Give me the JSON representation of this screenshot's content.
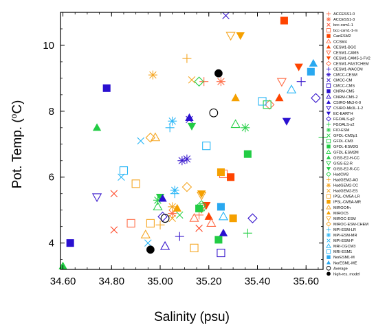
{
  "chart_data": {
    "type": "scatter",
    "title": "",
    "xlabel": "Salinity (psu)",
    "ylabel": "Pot. Temp. (",
    "ylabel_super": "o",
    "ylabel_tail": "C)",
    "xlim": [
      34.59,
      35.67
    ],
    "ylim": [
      3.2,
      11.0
    ],
    "x_ticks": [
      "34.60",
      "34.80",
      "35.00",
      "35.20",
      "35.40",
      "35.60"
    ],
    "x_tick_values": [
      34.6,
      34.8,
      35.0,
      35.2,
      35.4,
      35.6
    ],
    "y_ticks": [
      "4",
      "6",
      "8",
      "10"
    ],
    "y_tick_values": [
      4,
      6,
      8,
      10
    ],
    "grid": false,
    "legend_placement": "right, outside plot",
    "series": [
      {
        "name": "ACCESS1-0",
        "marker": "plus",
        "color": "#ff6f4a",
        "points": [
          [
            35.18,
            8.9
          ]
        ]
      },
      {
        "name": "ACCESS1-3",
        "marker": "star",
        "color": "#ff6f4a",
        "points": [
          [
            35.25,
            8.9
          ]
        ]
      },
      {
        "name": "bcc-csm1-1",
        "marker": "cross",
        "color": "#ff4a2a",
        "points": [
          [
            34.81,
            5.5
          ]
        ]
      },
      {
        "name": "bcc-csm1-1-m",
        "marker": "square-open",
        "color": "#ff6f4a",
        "points": [
          [
            34.88,
            4.6
          ]
        ]
      },
      {
        "name": "CanESM2",
        "marker": "square",
        "color": "#ff4400",
        "points": [
          [
            35.51,
            10.75
          ]
        ]
      },
      {
        "name": "CCSM4",
        "marker": "triangle-open",
        "color": "#ff6f4a",
        "points": [
          [
            35.14,
            4.75
          ]
        ]
      },
      {
        "name": "CESM1-BGC",
        "marker": "triangle",
        "color": "#ff4400",
        "points": [
          [
            35.2,
            4.8
          ]
        ]
      },
      {
        "name": "CESM1-CAM5",
        "marker": "triangle-down-open",
        "color": "#ff6f4a",
        "points": [
          [
            35.5,
            8.9
          ]
        ]
      },
      {
        "name": "CESM1-CAM5-1-FV2",
        "marker": "triangle-down",
        "color": "#ff4400",
        "points": [
          [
            35.57,
            9.35
          ]
        ]
      },
      {
        "name": "CESM1-FASTCHEM",
        "marker": "diamond-open",
        "color": "#ff6f4a",
        "points": [
          [
            35.45,
            8.2
          ]
        ]
      },
      {
        "name": "CESM1-WACCM",
        "marker": "plus",
        "color": "#3a1acd",
        "points": [
          [
            35.58,
            8.9
          ]
        ]
      },
      {
        "name": "CMCC-CESM",
        "marker": "star",
        "color": "#3a1acd",
        "points": [
          [
            35.09,
            6.5
          ]
        ]
      },
      {
        "name": "CMCC-CM",
        "marker": "cross",
        "color": "#3a1acd",
        "points": [
          [
            35.27,
            10.9
          ]
        ]
      },
      {
        "name": "CMCC-CMS",
        "marker": "square-open",
        "color": "#3a1acd",
        "points": [
          [
            35.25,
            3.7
          ]
        ]
      },
      {
        "name": "CNRM-CM5",
        "marker": "square",
        "color": "#2a10d0",
        "points": [
          [
            34.63,
            4.0
          ]
        ]
      },
      {
        "name": "CNRM-CM5-2",
        "marker": "triangle-open",
        "color": "#3a1acd",
        "points": [
          [
            35.02,
            3.9
          ]
        ]
      },
      {
        "name": "CSIRO-Mk3-6-0",
        "marker": "triangle",
        "color": "#2a10d0",
        "points": [
          [
            35.26,
            4.3
          ]
        ]
      },
      {
        "name": "CSIRO-Mk3L-1-2",
        "marker": "triangle-down-open",
        "color": "#3a1acd",
        "points": [
          [
            34.74,
            5.4
          ]
        ]
      },
      {
        "name": "EC-EARTH",
        "marker": "triangle-down",
        "color": "#2a10d0",
        "points": [
          [
            35.52,
            7.7
          ]
        ]
      },
      {
        "name": "FGOALS-g2",
        "marker": "diamond-open",
        "color": "#3a1acd",
        "points": [
          [
            35.38,
            4.75
          ]
        ]
      },
      {
        "name": "FGOALS-s2",
        "marker": "plus",
        "color": "#2ad04a",
        "points": [
          [
            35.67,
            7.2
          ]
        ]
      },
      {
        "name": "FIO-ESM",
        "marker": "star",
        "color": "#2ad04a",
        "points": [
          [
            35.35,
            7.5
          ]
        ]
      },
      {
        "name": "GFDL-CM2p1",
        "marker": "cross",
        "color": "#2ad04a",
        "points": [
          [
            35.08,
            4.85
          ]
        ]
      },
      {
        "name": "GFDL-CM3",
        "marker": "square-open",
        "color": "#2ad04a",
        "points": [
          [
            35.44,
            8.2
          ]
        ]
      },
      {
        "name": "GFDL-ESM2G",
        "marker": "square",
        "color": "#22cc44",
        "points": [
          [
            35.36,
            6.7
          ]
        ]
      },
      {
        "name": "GFDL-ESM2M",
        "marker": "triangle-open",
        "color": "#2ad04a",
        "points": [
          [
            35.31,
            7.6
          ]
        ]
      },
      {
        "name": "GISS-E2-H-CC",
        "marker": "triangle",
        "color": "#22cc44",
        "points": [
          [
            34.6,
            3.3
          ]
        ]
      },
      {
        "name": "GISS-E2-R",
        "marker": "triangle-down-open",
        "color": "#2ad04a",
        "points": [
          [
            35.18,
            5.1
          ]
        ]
      },
      {
        "name": "GISS-E2-R-CC",
        "marker": "triangle-down",
        "color": "#22cc44",
        "points": [
          [
            35.0,
            5.4
          ]
        ]
      },
      {
        "name": "HadCM3",
        "marker": "diamond-open",
        "color": "#2ad04a",
        "points": [
          [
            35.16,
            8.9
          ]
        ]
      },
      {
        "name": "HadGEM2-AO",
        "marker": "plus",
        "color": "#f5a623",
        "points": [
          [
            35.11,
            9.6
          ]
        ]
      },
      {
        "name": "HadGEM2-CC",
        "marker": "star",
        "color": "#f5a623",
        "points": [
          [
            34.97,
            9.1
          ]
        ]
      },
      {
        "name": "HadGEM2-ES",
        "marker": "cross",
        "color": "#f5a623",
        "points": [
          [
            35.13,
            8.95
          ]
        ]
      },
      {
        "name": "IPSL-CM5A-LR",
        "marker": "square-open",
        "color": "#f5a623",
        "points": [
          [
            34.9,
            5.8
          ]
        ]
      },
      {
        "name": "IPSL-CM5A-MR",
        "marker": "square",
        "color": "#f5a000",
        "points": [
          [
            35.3,
            4.75
          ]
        ]
      },
      {
        "name": "MIROC4h",
        "marker": "triangle-open",
        "color": "#f5a623",
        "points": [
          [
            34.98,
            7.2
          ]
        ]
      },
      {
        "name": "MIROC5",
        "marker": "triangle",
        "color": "#f5a000",
        "points": [
          [
            35.31,
            8.4
          ]
        ]
      },
      {
        "name": "MIROC-ESM",
        "marker": "triangle-down-open",
        "color": "#f5a623",
        "points": [
          [
            35.29,
            10.3
          ]
        ]
      },
      {
        "name": "MIROC-ESM-CHEM",
        "marker": "diamond-open",
        "color": "#f5a623",
        "points": [
          [
            34.96,
            7.2
          ]
        ]
      },
      {
        "name": "MPI-ESM-LR",
        "marker": "plus",
        "color": "#29b6f6",
        "points": [
          [
            35.04,
            7.5
          ]
        ]
      },
      {
        "name": "MPI-ESM-MR",
        "marker": "star",
        "color": "#29b6f6",
        "points": [
          [
            35.05,
            7.7
          ]
        ]
      },
      {
        "name": "MPI-ESM-P",
        "marker": "cross",
        "color": "#29b6f6",
        "points": [
          [
            34.92,
            7.1
          ]
        ]
      },
      {
        "name": "MRI-CGCM3",
        "marker": "triangle-open",
        "color": "#29b6f6",
        "points": [
          [
            35.54,
            8.65
          ]
        ]
      },
      {
        "name": "MRI-ESM1",
        "marker": "square-open",
        "color": "#29b6f6",
        "points": [
          [
            35.42,
            8.3
          ]
        ]
      },
      {
        "name": "NorESM1-M",
        "marker": "square",
        "color": "#29a8f0",
        "points": [
          [
            35.62,
            9.2
          ]
        ]
      },
      {
        "name": "NorESM1-ME",
        "marker": "triangle",
        "color": "#29a8f0",
        "points": [
          [
            35.63,
            9.45
          ]
        ]
      },
      {
        "name": "Average",
        "marker": "circle-open",
        "color": "#000000",
        "points": [
          [
            35.22,
            7.95
          ]
        ]
      },
      {
        "name": "high-res. model",
        "marker": "circle",
        "color": "#000000",
        "points": [
          [
            35.24,
            9.15
          ]
        ]
      }
    ],
    "extra_points": [
      {
        "series": "ACCESS1-0",
        "marker": "plus",
        "color": "#ff6f4a",
        "x": 35.16,
        "y": 4.85
      },
      {
        "series": "ACCESS1-3",
        "marker": "star",
        "color": "#ff6f4a",
        "x": 35.05,
        "y": 4.9
      },
      {
        "series": "bcc-csm1-1",
        "marker": "cross",
        "color": "#ff4a2a",
        "x": 34.81,
        "y": 4.4
      },
      {
        "series": "bcc-csm1-1",
        "marker": "cross",
        "color": "#ff4a2a",
        "x": 35.16,
        "y": 4.45
      },
      {
        "series": "bcc-csm1-1-m",
        "marker": "square-open",
        "color": "#ff6f4a",
        "x": 35.26,
        "y": 6.1
      },
      {
        "series": "CanESM2",
        "marker": "square",
        "color": "#ff4400",
        "x": 35.29,
        "y": 6.0
      },
      {
        "series": "CCSM4",
        "marker": "triangle-open",
        "color": "#ff6f4a",
        "x": 35.21,
        "y": 4.6
      },
      {
        "series": "CESM1-BGC",
        "marker": "triangle",
        "color": "#ff4400",
        "x": 35.49,
        "y": 8.4
      },
      {
        "series": "CESM1-CAM5",
        "marker": "triangle-down-open",
        "color": "#ff6f4a",
        "x": 35.17,
        "y": 5.05
      },
      {
        "series": "CESM1-CAM5-1-FV2",
        "marker": "triangle-down",
        "color": "#ff4400",
        "x": 35.19,
        "y": 5.15
      },
      {
        "series": "CESM1-WACCM",
        "marker": "plus",
        "color": "#3a1acd",
        "x": 35.08,
        "y": 4.2
      },
      {
        "series": "CMCC-CESM",
        "marker": "star",
        "color": "#3a1acd",
        "x": 35.11,
        "y": 6.55
      },
      {
        "series": "CMCC-CM",
        "marker": "cross",
        "color": "#3a1acd",
        "x": 35.12,
        "y": 7.75
      },
      {
        "series": "CNRM-CM5",
        "marker": "square",
        "color": "#2a10d0",
        "x": 34.78,
        "y": 8.7
      },
      {
        "series": "CSIRO-Mk3-6-0",
        "marker": "triangle",
        "color": "#2a10d0",
        "x": 35.12,
        "y": 7.8
      },
      {
        "series": "FGOALS-g2",
        "marker": "diamond-open",
        "color": "#3a1acd",
        "x": 35.64,
        "y": 8.4
      },
      {
        "series": "FGOALS-s2",
        "marker": "plus",
        "color": "#2ad04a",
        "x": 35.36,
        "y": 4.3
      },
      {
        "series": "FIO-ESM",
        "marker": "star",
        "color": "#2ad04a",
        "x": 34.99,
        "y": 5.3
      },
      {
        "series": "GFDL-ESM2G",
        "marker": "square",
        "color": "#22cc44",
        "x": 35.24,
        "y": 4.1
      },
      {
        "series": "GFDL-ESM2M",
        "marker": "triangle-open",
        "color": "#2ad04a",
        "x": 34.99,
        "y": 5.1
      },
      {
        "series": "GISS-E2-H-CC",
        "marker": "triangle",
        "color": "#22cc44",
        "x": 34.74,
        "y": 7.5
      },
      {
        "series": "GISS-E2-R-CC",
        "marker": "triangle-down",
        "color": "#22cc44",
        "x": 35.13,
        "y": 7.55
      },
      {
        "series": "HadCM3",
        "marker": "diamond-open",
        "color": "#2ad04a",
        "x": 35.17,
        "y": 5.15
      },
      {
        "series": "HadGEM2-AO",
        "marker": "plus",
        "color": "#f5a623",
        "x": 35.0,
        "y": 4.55
      },
      {
        "series": "HadGEM2-CC",
        "marker": "star",
        "color": "#f5a623",
        "x": 35.05,
        "y": 5.1
      },
      {
        "series": "HadGEM2-ES",
        "marker": "cross",
        "color": "#f5a623",
        "x": 35.05,
        "y": 4.75
      },
      {
        "series": "IPSL-CM5A-LR",
        "marker": "square-open",
        "color": "#f5a623",
        "x": 34.96,
        "y": 4.6
      },
      {
        "series": "IPSL-CM5A-LR",
        "marker": "square-open",
        "color": "#f5a623",
        "x": 35.14,
        "y": 3.85
      },
      {
        "series": "IPSL-CM5A-MR",
        "marker": "square",
        "color": "#f5a000",
        "x": 35.25,
        "y": 6.15
      },
      {
        "series": "MIROC4h",
        "marker": "triangle-open",
        "color": "#f5a623",
        "x": 34.94,
        "y": 4.25
      },
      {
        "series": "MIROC5",
        "marker": "triangle",
        "color": "#f5a000",
        "x": 35.07,
        "y": 5.05
      },
      {
        "series": "MIROC-ESM",
        "marker": "triangle-down-open",
        "color": "#f5a623",
        "x": 35.17,
        "y": 5.45
      },
      {
        "series": "MIROC-ESM-CHEM",
        "marker": "triangle-down",
        "color": "#f5a000",
        "x": 35.33,
        "y": 10.3
      },
      {
        "series": "MIROC-ESM-CHEM",
        "marker": "triangle-down",
        "color": "#f5a000",
        "x": 35.17,
        "y": 5.5
      },
      {
        "series": "MIROC-ESM-CHEM",
        "marker": "diamond-open",
        "color": "#f5a623",
        "x": 35.11,
        "y": 5.7
      },
      {
        "series": "MPI-ESM-LR",
        "marker": "plus",
        "color": "#29b6f6",
        "x": 35.06,
        "y": 5.5
      },
      {
        "series": "MPI-ESM-MR",
        "marker": "star",
        "color": "#29b6f6",
        "x": 35.06,
        "y": 5.6
      },
      {
        "series": "MPI-ESM-P",
        "marker": "cross",
        "color": "#29b6f6",
        "x": 34.84,
        "y": 6.0
      },
      {
        "series": "MPI-ESM-P",
        "marker": "cross",
        "color": "#29b6f6",
        "x": 34.95,
        "y": 4.0
      },
      {
        "series": "MRI-CGCM3",
        "marker": "triangle-open",
        "color": "#29b6f6",
        "x": 35.26,
        "y": 4.8
      },
      {
        "series": "MRI-ESM1",
        "marker": "square-open",
        "color": "#29b6f6",
        "x": 34.85,
        "y": 6.2
      },
      {
        "series": "MRI-ESM1",
        "marker": "square-open",
        "color": "#29b6f6",
        "x": 35.19,
        "y": 6.95
      },
      {
        "series": "NorESM1-M",
        "marker": "square",
        "color": "#29a8f0",
        "x": 35.25,
        "y": 5.1
      },
      {
        "series": "FGOALS-g2",
        "marker": "diamond-open",
        "color": "#3a1acd",
        "x": 35.01,
        "y": 4.8
      },
      {
        "series": "CSIRO-Mk3-6-0",
        "marker": "triangle",
        "color": "#2a10d0",
        "x": 35.01,
        "y": 5.35
      },
      {
        "series": "GFDL-ESM2G",
        "marker": "square",
        "color": "#22cc44",
        "x": 35.16,
        "y": 5.05
      },
      {
        "series": "Average",
        "marker": "circle-open",
        "color": "#000000",
        "x": 35.02,
        "y": 4.75
      },
      {
        "series": "high-res. model",
        "marker": "circle",
        "color": "#000000",
        "x": 34.96,
        "y": 3.8
      }
    ]
  }
}
